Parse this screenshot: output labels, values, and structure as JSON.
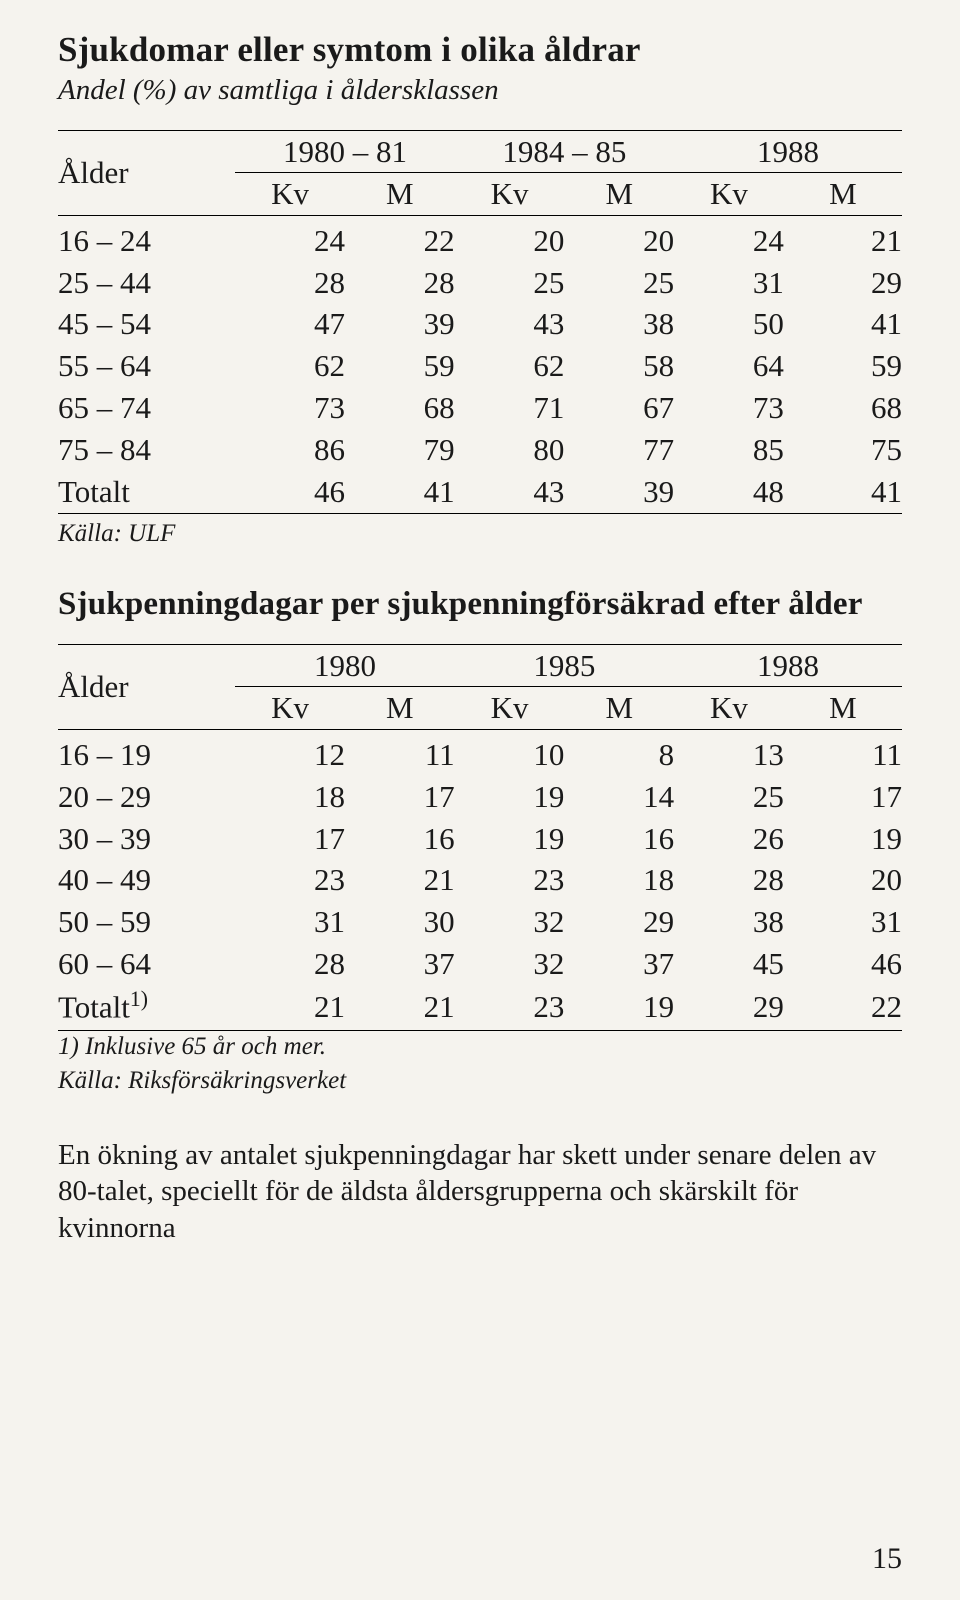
{
  "table1": {
    "title": "Sjukdomar eller symtom i olika åldrar",
    "subtitle": "Andel (%) av samtliga i åldersklassen",
    "row_header": "Ålder",
    "year_headers": [
      "1980 – 81",
      "1984 – 85",
      "1988"
    ],
    "sub_headers": [
      "Kv",
      "M",
      "Kv",
      "M",
      "Kv",
      "M"
    ],
    "rows": [
      {
        "label": "16 – 24",
        "v": [
          "24",
          "22",
          "20",
          "20",
          "24",
          "21"
        ]
      },
      {
        "label": "25 – 44",
        "v": [
          "28",
          "28",
          "25",
          "25",
          "31",
          "29"
        ]
      },
      {
        "label": "45 – 54",
        "v": [
          "47",
          "39",
          "43",
          "38",
          "50",
          "41"
        ]
      },
      {
        "label": "55 – 64",
        "v": [
          "62",
          "59",
          "62",
          "58",
          "64",
          "59"
        ]
      },
      {
        "label": "65 – 74",
        "v": [
          "73",
          "68",
          "71",
          "67",
          "73",
          "68"
        ]
      },
      {
        "label": "75 – 84",
        "v": [
          "86",
          "79",
          "80",
          "77",
          "85",
          "75"
        ]
      },
      {
        "label": "Totalt",
        "v": [
          "46",
          "41",
          "43",
          "39",
          "48",
          "41"
        ]
      }
    ],
    "source": "Källa: ULF"
  },
  "table2": {
    "title": "Sjukpenningdagar per sjukpenningförsäkrad efter ålder",
    "row_header": "Ålder",
    "year_headers": [
      "1980",
      "1985",
      "1988"
    ],
    "sub_headers": [
      "Kv",
      "M",
      "Kv",
      "M",
      "Kv",
      "M"
    ],
    "rows": [
      {
        "label": "16 – 19",
        "v": [
          "12",
          "11",
          "10",
          "8",
          "13",
          "11"
        ]
      },
      {
        "label": "20 – 29",
        "v": [
          "18",
          "17",
          "19",
          "14",
          "25",
          "17"
        ]
      },
      {
        "label": "30 – 39",
        "v": [
          "17",
          "16",
          "19",
          "16",
          "26",
          "19"
        ]
      },
      {
        "label": "40 – 49",
        "v": [
          "23",
          "21",
          "23",
          "18",
          "28",
          "20"
        ]
      },
      {
        "label": "50 – 59",
        "v": [
          "31",
          "30",
          "32",
          "29",
          "38",
          "31"
        ]
      },
      {
        "label": "60 – 64",
        "v": [
          "28",
          "37",
          "32",
          "37",
          "45",
          "46"
        ]
      },
      {
        "label": "Totalt",
        "sup": "1)",
        "v": [
          "21",
          "21",
          "23",
          "19",
          "29",
          "22"
        ]
      }
    ],
    "footnote": "1) Inklusive 65 år och mer.",
    "source": "Källa: Riksförsäkringsverket"
  },
  "paragraph": "En ökning av antalet sjukpenningdagar har skett under senare delen av 80-talet, speciellt för de äldsta åldersgrupperna och skärskilt för kvinnorna",
  "page_number": "15"
}
